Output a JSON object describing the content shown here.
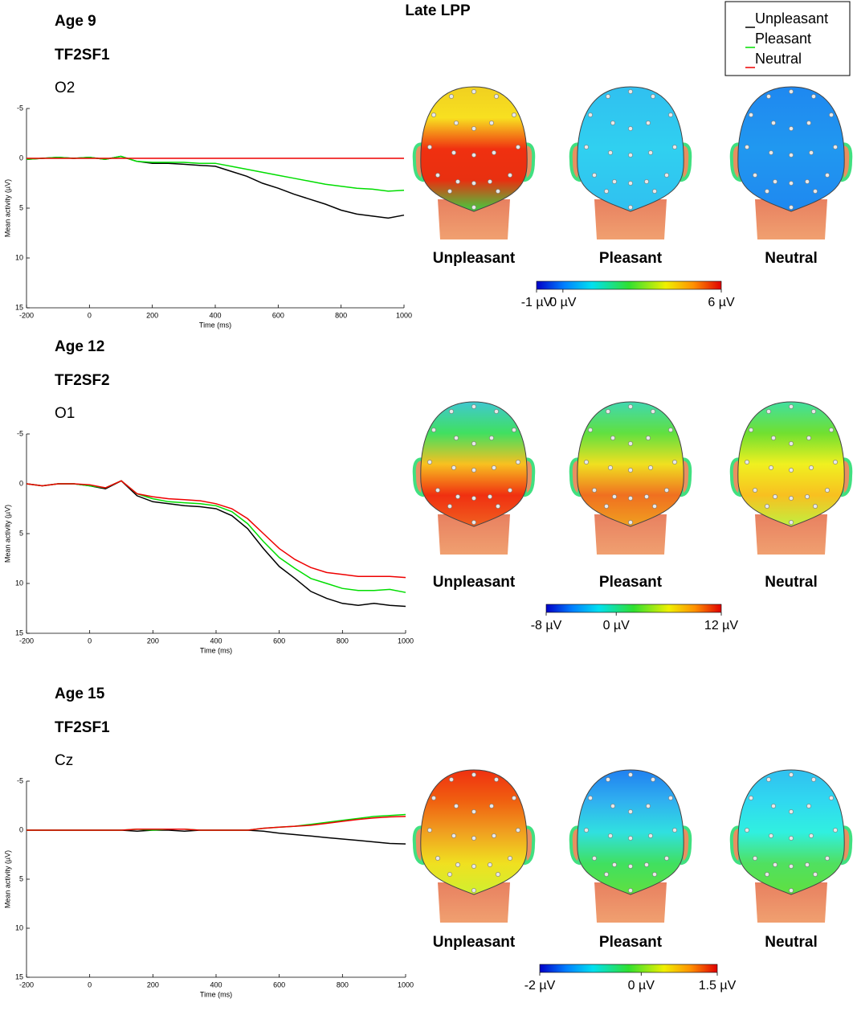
{
  "figure_title": "Late LPP",
  "chart_data": [
    {
      "type": "line",
      "title": "Age 9",
      "subtitle": "TF2SF1",
      "electrode": "O2",
      "xlabel": "Time (ms)",
      "ylabel": "Mean activity (µV)",
      "x": [
        -200,
        -150,
        -100,
        -50,
        0,
        50,
        100,
        150,
        200,
        250,
        300,
        350,
        400,
        450,
        500,
        550,
        600,
        650,
        700,
        750,
        800,
        850,
        900,
        950,
        1000
      ],
      "series": [
        {
          "name": "Unpleasant",
          "color": "#000000",
          "values": [
            0.1,
            0,
            -0.1,
            0,
            -0.1,
            0.1,
            -0.2,
            0.3,
            0.5,
            0.5,
            0.6,
            0.7,
            0.8,
            1.3,
            1.8,
            2.5,
            3.0,
            3.6,
            4.1,
            4.6,
            5.2,
            5.6,
            5.8,
            6.0,
            5.7
          ]
        },
        {
          "name": "Pleasant",
          "color": "#00dd00",
          "values": [
            0.1,
            0,
            -0.1,
            0,
            -0.1,
            0.1,
            -0.2,
            0.3,
            0.4,
            0.4,
            0.4,
            0.5,
            0.5,
            0.8,
            1.1,
            1.4,
            1.7,
            2.0,
            2.3,
            2.6,
            2.8,
            3.0,
            3.1,
            3.3,
            3.2
          ]
        },
        {
          "name": "Neutral",
          "color": "#ee0000",
          "values": [
            0,
            0,
            0,
            0,
            0,
            0,
            0,
            0,
            0,
            0,
            0,
            0,
            0,
            0,
            0,
            0,
            0,
            0,
            0,
            0,
            0,
            0,
            0,
            0,
            0
          ]
        }
      ],
      "xlim": [
        -200,
        1000
      ],
      "ylim": [
        15,
        -5
      ],
      "xticks": [
        -200,
        0,
        200,
        400,
        600,
        800,
        1000
      ],
      "yticks": [
        -5,
        0,
        5,
        10,
        15
      ],
      "topomaps": {
        "labels": [
          "Unpleasant",
          "Pleasant",
          "Neutral"
        ],
        "colorbar": {
          "clim": [
            -1,
            6
          ],
          "ticks": [
            {
              "value": -1,
              "label": "-1 µV"
            },
            {
              "value": 0,
              "label": "0 µV"
            },
            {
              "value": 6,
              "label": "6 µV"
            }
          ]
        }
      }
    },
    {
      "type": "line",
      "title": "Age 12",
      "subtitle": "TF2SF2",
      "electrode": "O1",
      "xlabel": "Time (ms)",
      "ylabel": "Mean activity (µV)",
      "x": [
        -200,
        -150,
        -100,
        -50,
        0,
        50,
        100,
        150,
        200,
        250,
        300,
        350,
        400,
        450,
        500,
        550,
        600,
        650,
        700,
        750,
        800,
        850,
        900,
        950,
        1000
      ],
      "series": [
        {
          "name": "Unpleasant",
          "color": "#000000",
          "values": [
            0,
            0.2,
            0,
            0,
            0.2,
            0.5,
            -0.3,
            1.2,
            1.8,
            2.0,
            2.2,
            2.3,
            2.5,
            3.2,
            4.5,
            6.5,
            8.3,
            9.5,
            10.8,
            11.5,
            12.0,
            12.2,
            12.0,
            12.2,
            12.3
          ]
        },
        {
          "name": "Pleasant",
          "color": "#00dd00",
          "values": [
            0,
            0.2,
            0,
            0,
            0.2,
            0.4,
            -0.3,
            1.0,
            1.5,
            1.8,
            1.9,
            2.0,
            2.2,
            2.8,
            4.0,
            5.8,
            7.4,
            8.5,
            9.5,
            10.0,
            10.5,
            10.7,
            10.7,
            10.6,
            10.9
          ]
        },
        {
          "name": "Neutral",
          "color": "#ee0000",
          "values": [
            0,
            0.2,
            0,
            0,
            0.1,
            0.4,
            -0.3,
            1.0,
            1.3,
            1.5,
            1.6,
            1.7,
            2.0,
            2.5,
            3.5,
            5.0,
            6.5,
            7.6,
            8.4,
            8.9,
            9.1,
            9.3,
            9.3,
            9.3,
            9.4
          ]
        }
      ],
      "xlim": [
        -200,
        1000
      ],
      "ylim": [
        15,
        -5
      ],
      "xticks": [
        -200,
        0,
        200,
        400,
        600,
        800,
        1000
      ],
      "yticks": [
        -5,
        0,
        5,
        10,
        15
      ],
      "topomaps": {
        "labels": [
          "Unpleasant",
          "Pleasant",
          "Neutral"
        ],
        "colorbar": {
          "clim": [
            -8,
            12
          ],
          "ticks": [
            {
              "value": -8,
              "label": "-8 µV"
            },
            {
              "value": 0,
              "label": "0 µV"
            },
            {
              "value": 12,
              "label": "12 µV"
            }
          ]
        }
      }
    },
    {
      "type": "line",
      "title": "Age 15",
      "subtitle": "TF2SF1",
      "electrode": "Cz",
      "xlabel": "Time (ms)",
      "ylabel": "Mean activity (µV)",
      "x": [
        -200,
        -150,
        -100,
        -50,
        0,
        50,
        100,
        150,
        200,
        250,
        300,
        350,
        400,
        450,
        500,
        550,
        600,
        650,
        700,
        750,
        800,
        850,
        900,
        950,
        1000
      ],
      "series": [
        {
          "name": "Unpleasant",
          "color": "#000000",
          "values": [
            0,
            0,
            0,
            0,
            0,
            0,
            0,
            0.1,
            0,
            0,
            0.1,
            0,
            0,
            0,
            0,
            0.1,
            0.3,
            0.45,
            0.6,
            0.75,
            0.9,
            1.05,
            1.2,
            1.35,
            1.4
          ]
        },
        {
          "name": "Pleasant",
          "color": "#00dd00",
          "values": [
            0,
            0,
            0,
            0,
            0,
            0,
            0,
            -0.1,
            0,
            -0.1,
            -0.1,
            0,
            0,
            0,
            0,
            -0.2,
            -0.3,
            -0.4,
            -0.6,
            -0.8,
            -1.0,
            -1.2,
            -1.4,
            -1.5,
            -1.6
          ]
        },
        {
          "name": "Neutral",
          "color": "#ee0000",
          "values": [
            0,
            0,
            0,
            0,
            0,
            0,
            0,
            -0.1,
            -0.1,
            -0.1,
            -0.1,
            0,
            0,
            0,
            0,
            -0.2,
            -0.3,
            -0.4,
            -0.5,
            -0.7,
            -0.9,
            -1.1,
            -1.25,
            -1.35,
            -1.4
          ]
        }
      ],
      "xlim": [
        -200,
        1000
      ],
      "ylim": [
        15,
        -5
      ],
      "xticks": [
        -200,
        0,
        200,
        400,
        600,
        800,
        1000
      ],
      "yticks": [
        -5,
        0,
        5,
        10,
        15
      ],
      "topomaps": {
        "labels": [
          "Unpleasant",
          "Pleasant",
          "Neutral"
        ],
        "colorbar": {
          "clim": [
            -2,
            1.5
          ],
          "ticks": [
            {
              "value": -2,
              "label": "-2 µV"
            },
            {
              "value": 0,
              "label": "0 µV"
            },
            {
              "value": 1.5,
              "label": "1.5 µV"
            }
          ]
        }
      }
    }
  ]
}
